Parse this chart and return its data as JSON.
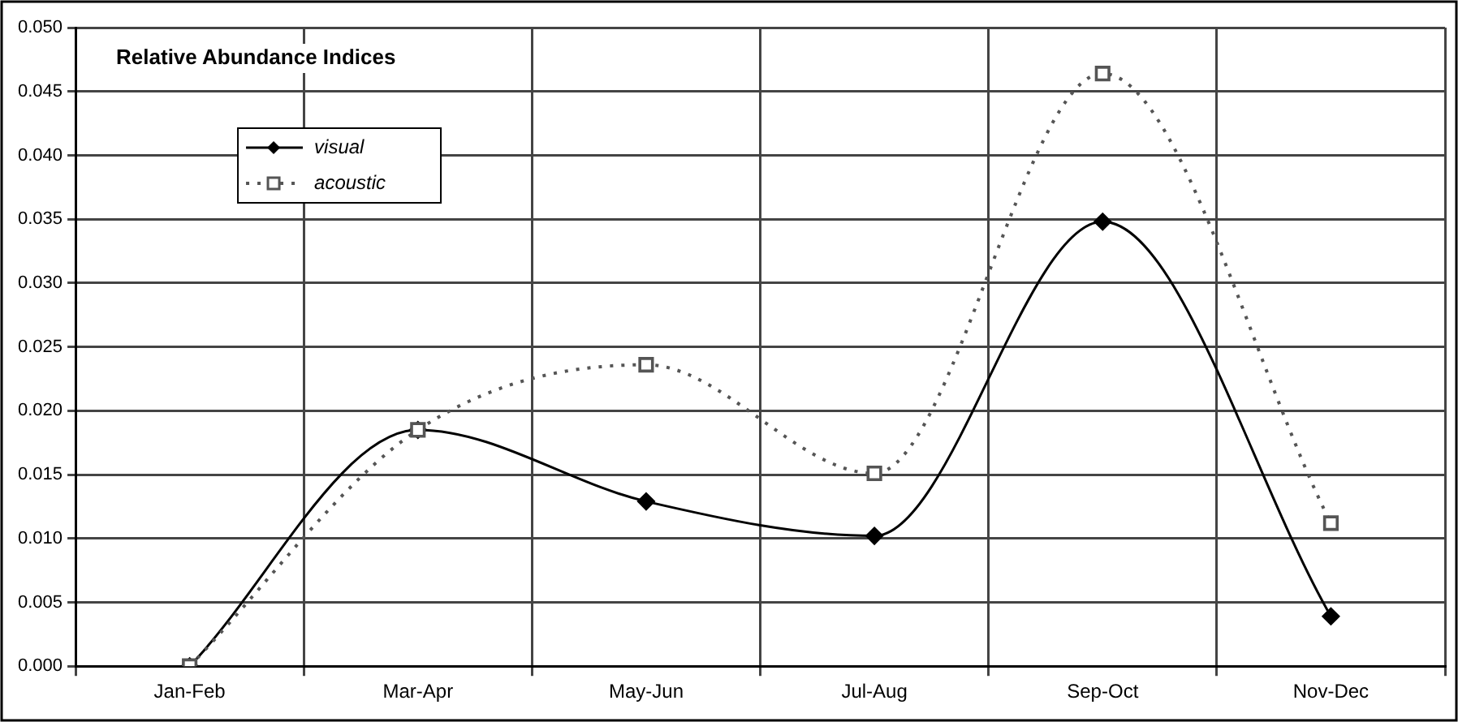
{
  "chart_data": {
    "type": "line",
    "title": "Relative Abundance Indices",
    "categories": [
      "Jan-Feb",
      "Mar-Apr",
      "May-Jun",
      "Jul-Aug",
      "Sep-Oct",
      "Nov-Dec"
    ],
    "series": [
      {
        "name": "visual",
        "color": "#000000",
        "marker": "diamond",
        "line_style": "solid",
        "values": [
          0,
          0.0185,
          0.0129,
          0.0102,
          0.0348,
          0.0039
        ]
      },
      {
        "name": "acoustic",
        "color": "#555555",
        "marker": "square",
        "line_style": "dotted",
        "values": [
          0,
          0.0185,
          0.0236,
          0.0151,
          0.0464,
          0.0112
        ]
      }
    ],
    "ylim": [
      0,
      0.05
    ],
    "yticks": [
      {
        "value": 0,
        "label": "0.000"
      },
      {
        "value": 0.005,
        "label": "0.005"
      },
      {
        "value": 0.01,
        "label": "0.010"
      },
      {
        "value": 0.015,
        "label": "0.015"
      },
      {
        "value": 0.02,
        "label": "0.020"
      },
      {
        "value": 0.025,
        "label": "0.025"
      },
      {
        "value": 0.03,
        "label": "0.030"
      },
      {
        "value": 0.035,
        "label": "0.035"
      },
      {
        "value": 0.04,
        "label": "0.040"
      },
      {
        "value": 0.045,
        "label": "0.045"
      },
      {
        "value": 0.05,
        "label": "0.050"
      }
    ],
    "grid": true,
    "legend": "top left"
  }
}
